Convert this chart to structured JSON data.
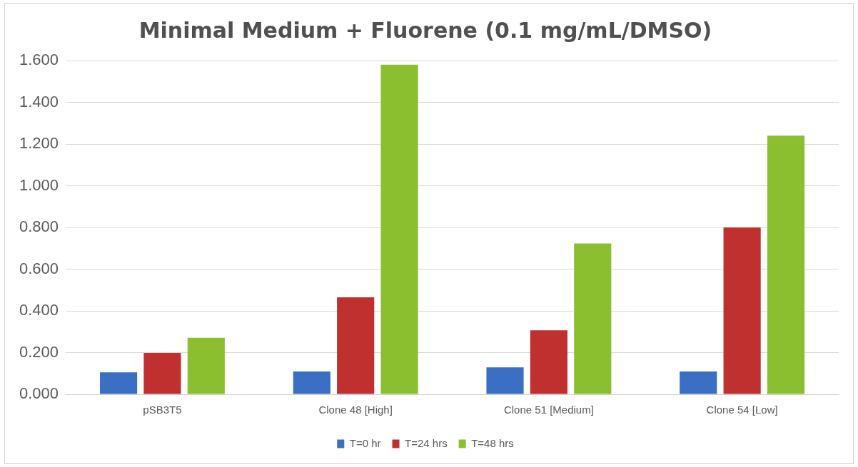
{
  "chart_data": {
    "type": "bar",
    "title": "Minimal Medium + Fluorene (0.1 mg/mL/DMSO)",
    "categories": [
      "pSB3T5",
      "Clone 48 [High]",
      "Clone 51 [Medium]",
      "Clone 54 [Low]"
    ],
    "series": [
      {
        "name": "T=0 hr",
        "color": "#3a6fc4",
        "values": [
          0.105,
          0.109,
          0.129,
          0.109
        ]
      },
      {
        "name": "T=24 hrs",
        "color": "#c0302f",
        "values": [
          0.198,
          0.465,
          0.307,
          0.8
        ]
      },
      {
        "name": "T=48 hrs",
        "color": "#8cbf2f",
        "values": [
          0.271,
          1.58,
          0.723,
          1.24
        ]
      }
    ],
    "ylim": [
      0,
      1.6
    ],
    "yticks": [
      {
        "value": 0,
        "label": "0.000"
      },
      {
        "value": 0.2,
        "label": "0.200"
      },
      {
        "value": 0.4,
        "label": "0.400"
      },
      {
        "value": 0.6,
        "label": "0.600"
      },
      {
        "value": 0.8,
        "label": "0.800"
      },
      {
        "value": 1,
        "label": "1.000"
      },
      {
        "value": 1.2,
        "label": "1.200"
      },
      {
        "value": 1.4,
        "label": "1.400"
      },
      {
        "value": 1.6,
        "label": "1.600"
      }
    ],
    "grid": "y",
    "legend": "bottom"
  }
}
